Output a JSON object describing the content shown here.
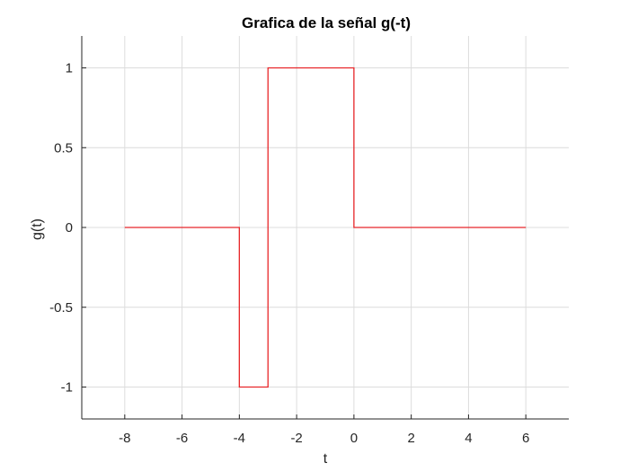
{
  "chart_data": {
    "type": "line",
    "title": "Grafica de la señal g(-t)",
    "xlabel": "t",
    "ylabel": "g(t)",
    "xlim": [
      -9.5,
      7.5
    ],
    "ylim": [
      -1.2,
      1.2
    ],
    "xticks": [
      -8,
      -6,
      -4,
      -2,
      0,
      2,
      4,
      6
    ],
    "yticks": [
      -1,
      -0.5,
      0,
      0.5,
      1
    ],
    "xtick_labels": [
      "-8",
      "-6",
      "-4",
      "-2",
      "0",
      "2",
      "4",
      "6"
    ],
    "ytick_labels": [
      "-1",
      "-0.5",
      "0",
      "0.5",
      "1"
    ],
    "grid": true,
    "series": [
      {
        "color": "#e8262a",
        "x": [
          -8,
          -4,
          -4,
          -3,
          -3,
          0,
          0,
          6
        ],
        "y": [
          0,
          0,
          -1,
          -1,
          1,
          1,
          0,
          0
        ]
      }
    ]
  }
}
